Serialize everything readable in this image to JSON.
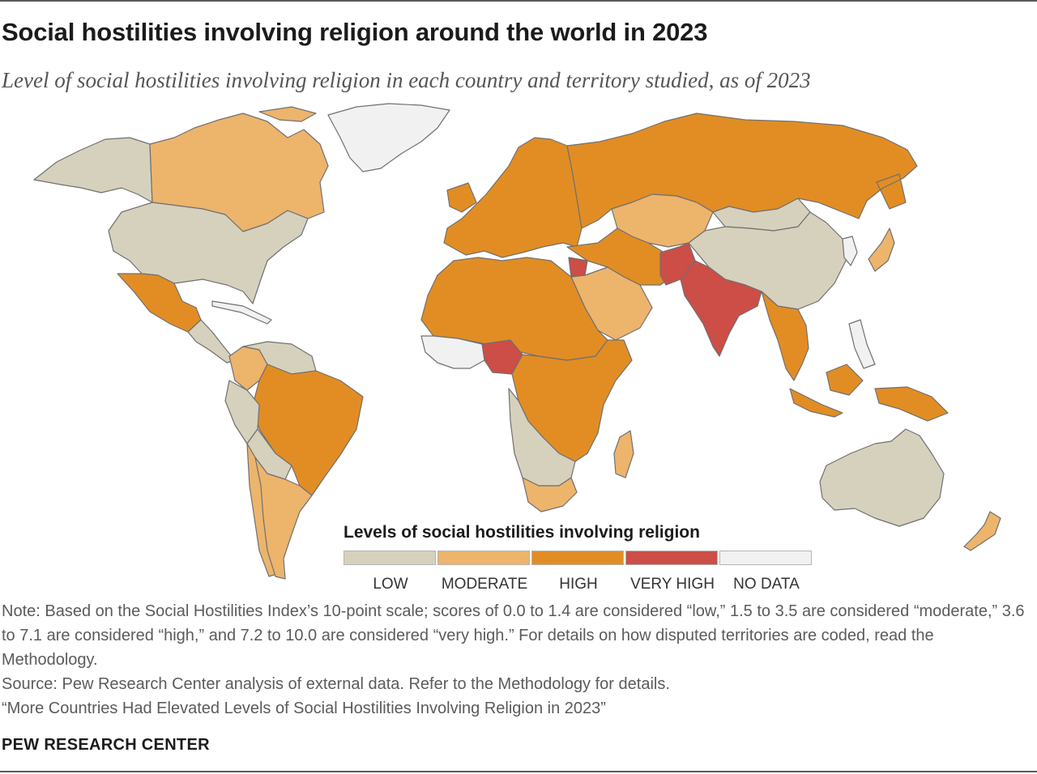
{
  "title": "Social hostilities involving religion around the world in 2023",
  "subtitle": "Level of social hostilities involving religion in each country and territory studied, as of 2023",
  "legend": {
    "title": "Levels of social hostilities involving religion",
    "items": [
      {
        "label": "LOW",
        "color": "#d6d1bd"
      },
      {
        "label": "MODERATE",
        "color": "#edb46c"
      },
      {
        "label": "HIGH",
        "color": "#e28d24"
      },
      {
        "label": "VERY HIGH",
        "color": "#cd4d47"
      },
      {
        "label": "NO DATA",
        "color": "#f1f1f1"
      }
    ]
  },
  "map_regions": [
    {
      "name": "Alaska",
      "level": "LOW"
    },
    {
      "name": "Canada",
      "level": "MODERATE"
    },
    {
      "name": "Greenland",
      "level": "NO DATA"
    },
    {
      "name": "United States",
      "level": "LOW"
    },
    {
      "name": "Mexico",
      "level": "HIGH"
    },
    {
      "name": "Central America",
      "level": "LOW"
    },
    {
      "name": "Colombia",
      "level": "MODERATE"
    },
    {
      "name": "Venezuela",
      "level": "LOW"
    },
    {
      "name": "Brazil",
      "level": "HIGH"
    },
    {
      "name": "Peru",
      "level": "LOW"
    },
    {
      "name": "Bolivia",
      "level": "LOW"
    },
    {
      "name": "Argentina",
      "level": "MODERATE"
    },
    {
      "name": "Chile",
      "level": "MODERATE"
    },
    {
      "name": "Europe",
      "level": "HIGH"
    },
    {
      "name": "Russia",
      "level": "HIGH"
    },
    {
      "name": "Central Asia",
      "level": "MODERATE"
    },
    {
      "name": "Mongolia",
      "level": "LOW"
    },
    {
      "name": "China",
      "level": "LOW"
    },
    {
      "name": "India",
      "level": "VERY HIGH"
    },
    {
      "name": "Pakistan",
      "level": "VERY HIGH"
    },
    {
      "name": "Syria",
      "level": "VERY HIGH"
    },
    {
      "name": "Nigeria",
      "level": "VERY HIGH"
    },
    {
      "name": "Saudi Arabia",
      "level": "MODERATE"
    },
    {
      "name": "Iran",
      "level": "HIGH"
    },
    {
      "name": "North Africa",
      "level": "HIGH"
    },
    {
      "name": "Central Africa",
      "level": "HIGH"
    },
    {
      "name": "Southern Africa",
      "level": "LOW"
    },
    {
      "name": "South Africa",
      "level": "MODERATE"
    },
    {
      "name": "Madagascar",
      "level": "MODERATE"
    },
    {
      "name": "Southeast Asia",
      "level": "HIGH"
    },
    {
      "name": "Indonesia",
      "level": "HIGH"
    },
    {
      "name": "Japan",
      "level": "MODERATE"
    },
    {
      "name": "Australia",
      "level": "LOW"
    },
    {
      "name": "New Zealand",
      "level": "MODERATE"
    }
  ],
  "notes": {
    "note": "Note: Based on the Social Hostilities Index’s 10-point scale; scores of 0.0 to 1.4 are considered “low,” 1.5 to 3.5 are considered “moderate,” 3.6 to 7.1 are considered “high,” and 7.2 to 10.0 are considered “very high.” For details on how disputed territories are coded, read the Methodology.",
    "source": "Source: Pew Research Center analysis of external data. Refer to the Methodology for details.",
    "report": "“More Countries Had Elevated Levels of Social Hostilities Involving Religion in 2023”"
  },
  "footer": "PEW RESEARCH CENTER"
}
